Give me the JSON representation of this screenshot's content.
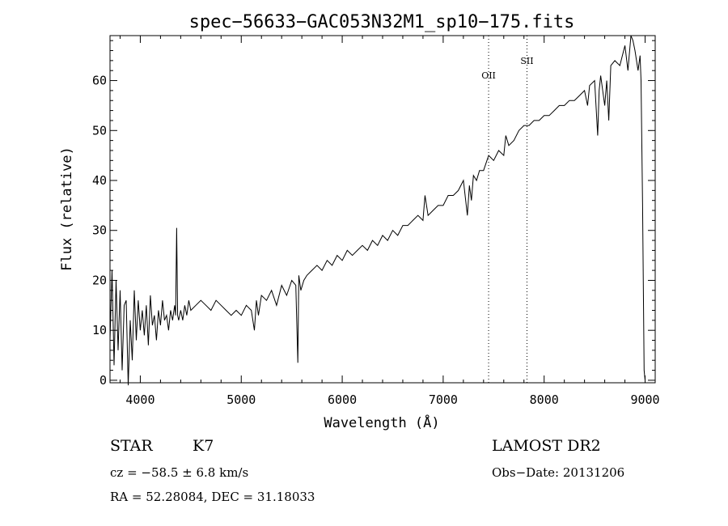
{
  "chart_data": {
    "type": "line",
    "title": "spec−56633−GAC053N32M1_sp10−175.fits",
    "xlabel": "Wavelength (Å)",
    "ylabel": "Flux (relative)",
    "xlim": [
      3700,
      9100
    ],
    "ylim": [
      -0.5,
      69
    ],
    "xticks": [
      4000,
      5000,
      6000,
      7000,
      8000,
      9000
    ],
    "yticks": [
      0,
      10,
      20,
      30,
      40,
      50,
      60
    ],
    "grid": false,
    "legend": "none",
    "line_color": "#000000",
    "reference_lines": [
      {
        "label": "OII",
        "x": 7450
      },
      {
        "label": "SII",
        "x": 7830
      }
    ],
    "series": [
      {
        "x": [
          3700,
          3720,
          3740,
          3760,
          3780,
          3800,
          3820,
          3840,
          3860,
          3880,
          3900,
          3920,
          3940,
          3960,
          3980,
          4000,
          4020,
          4040,
          4060,
          4080,
          4100,
          4120,
          4140,
          4160,
          4180,
          4200,
          4220,
          4240,
          4260,
          4280,
          4300,
          4320,
          4340,
          4350,
          4360,
          4370,
          4380,
          4400,
          4420,
          4440,
          4460,
          4480,
          4500,
          4550,
          4600,
          4650,
          4700,
          4750,
          4800,
          4850,
          4900,
          4950,
          5000,
          5050,
          5100,
          5130,
          5150,
          5170,
          5200,
          5250,
          5300,
          5350,
          5400,
          5450,
          5500,
          5540,
          5560,
          5570,
          5590,
          5620,
          5650,
          5700,
          5750,
          5800,
          5850,
          5900,
          5950,
          6000,
          6050,
          6100,
          6150,
          6200,
          6250,
          6300,
          6350,
          6400,
          6450,
          6500,
          6550,
          6600,
          6650,
          6700,
          6750,
          6800,
          6820,
          6850,
          6900,
          6950,
          7000,
          7050,
          7100,
          7150,
          7200,
          7240,
          7260,
          7280,
          7300,
          7330,
          7360,
          7400,
          7450,
          7500,
          7550,
          7600,
          7620,
          7650,
          7700,
          7750,
          7800,
          7850,
          7900,
          7950,
          8000,
          8050,
          8100,
          8150,
          8200,
          8250,
          8300,
          8350,
          8400,
          8430,
          8450,
          8500,
          8530,
          8545,
          8560,
          8600,
          8620,
          8640,
          8660,
          8700,
          8750,
          8800,
          8830,
          8860,
          8880,
          8900,
          8930,
          8950,
          8960,
          8975,
          8990,
          9000
        ],
        "values": [
          8,
          22,
          3,
          20,
          6,
          18,
          2,
          15,
          16,
          -1,
          12,
          4,
          18,
          8,
          16,
          10,
          14,
          9,
          15,
          7,
          17,
          11,
          13,
          8,
          14,
          11,
          16,
          12,
          13,
          10,
          14,
          12,
          15,
          13,
          30.5,
          13,
          12,
          14,
          12,
          15,
          13,
          16,
          14,
          15,
          16,
          15,
          14,
          16,
          15,
          14,
          13,
          14,
          13,
          15,
          14,
          10,
          16,
          13,
          17,
          16,
          18,
          15,
          19,
          17,
          20,
          19,
          3.5,
          21,
          18,
          20,
          21,
          22,
          23,
          22,
          24,
          23,
          25,
          24,
          26,
          25,
          26,
          27,
          26,
          28,
          27,
          29,
          28,
          30,
          29,
          31,
          31,
          32,
          33,
          32,
          37,
          33,
          34,
          35,
          35,
          37,
          37,
          38,
          40,
          33,
          39,
          36,
          41,
          40,
          42,
          42,
          45,
          44,
          46,
          45,
          49,
          47,
          48,
          50,
          51,
          51,
          52,
          52,
          53,
          53,
          54,
          55,
          55,
          56,
          56,
          57,
          58,
          55,
          59,
          60,
          49,
          58,
          61,
          55,
          60,
          52,
          63,
          64,
          63,
          67,
          62,
          69,
          68,
          66,
          62,
          65,
          60,
          35,
          2,
          0
        ]
      }
    ]
  },
  "info": {
    "class_label": "STAR",
    "subclass": "K7",
    "survey": "LAMOST DR2",
    "cz": "cz = −58.5 ± 6.8 km/s",
    "obs_date": "Obs−Date: 20131206",
    "coords": "RA =  52.28084, DEC =  31.18033"
  }
}
